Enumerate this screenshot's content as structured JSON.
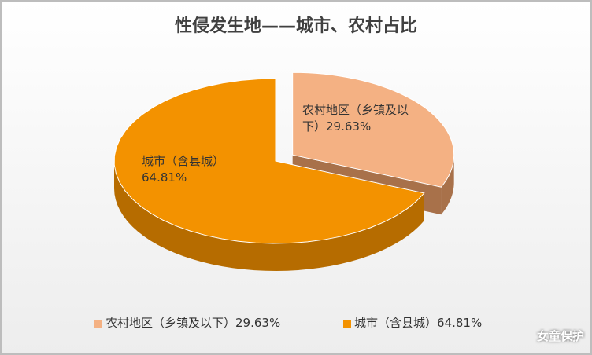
{
  "chart_data": {
    "type": "pie3d",
    "title": "性侵发生地——城市、农村占比",
    "categories": [
      "农村地区（乡镇及以下）",
      "城市（含县城）"
    ],
    "values": [
      29.63,
      64.81
    ],
    "value_labels": [
      "29.63%",
      "64.81%"
    ],
    "colors": [
      "#f4b183",
      "#f39200"
    ],
    "side_colors": [
      "#a8714a",
      "#b66c00"
    ],
    "exploded": [
      true,
      false
    ],
    "legend": "bottom"
  },
  "watermark": "女童保护"
}
